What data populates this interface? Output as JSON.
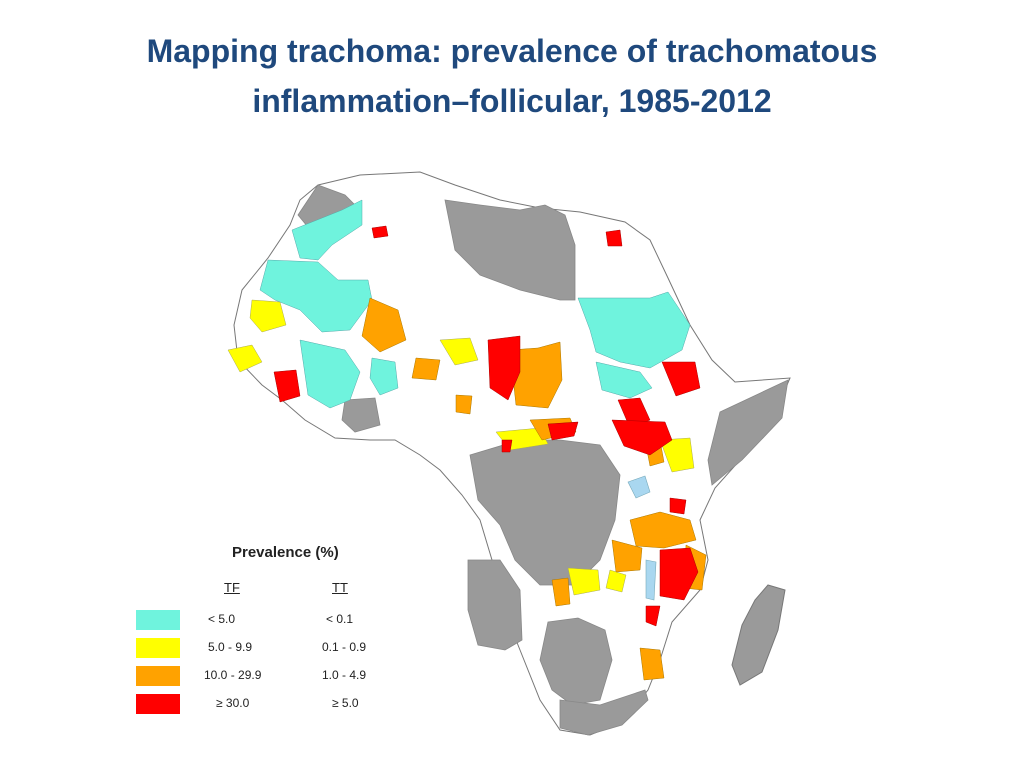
{
  "title": {
    "line1": "Mapping trachoma: prevalence of trachomatous",
    "line2": "inflammation–follicular, 1985-2012"
  },
  "colors": {
    "no_data": "#ffffff",
    "not_endemic": "#9a9a9a",
    "water": "#a9d7f0",
    "low": "#6ff3dd",
    "mid": "#ffff00",
    "high": "#ffa200",
    "very_high": "#ff0000"
  },
  "legend": {
    "title": "Prevalence (%)",
    "col_tf": "TF",
    "col_tt": "TT",
    "rows": [
      {
        "tf": "< 5.0",
        "tt": "< 0.1",
        "color": "#6ff3dd"
      },
      {
        "tf": "5.0 - 9.9",
        "tt": "0.1 - 0.9",
        "color": "#ffff00"
      },
      {
        "tf": "10.0 - 29.9",
        "tt": "1.0 - 4.9",
        "color": "#ffa200"
      },
      {
        "tf": "≥ 30.0",
        "tt": "≥ 5.0",
        "color": "#ff0000"
      }
    ]
  }
}
